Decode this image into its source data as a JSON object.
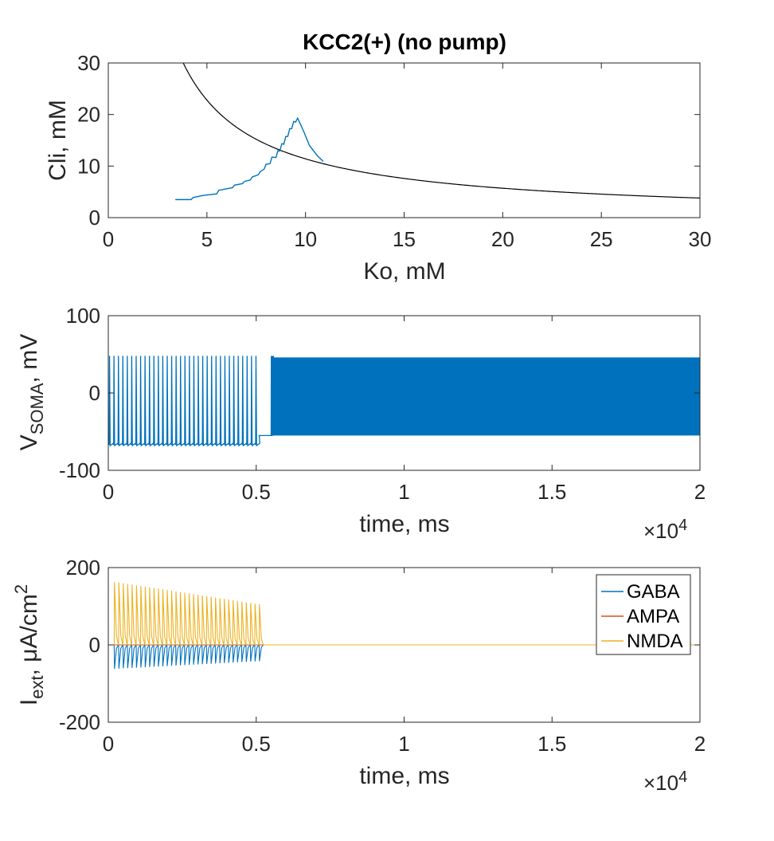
{
  "colors": {
    "gaba": "#0072BD",
    "ampa": "#D95319",
    "nmda": "#EDB120",
    "curve": "#000000",
    "axis": "#262626"
  },
  "chart_data": [
    {
      "type": "line",
      "title": "KCC2(+) (no pump)",
      "xlabel": "Ko, mM",
      "ylabel": "Cli, mM",
      "xlim": [
        0,
        30
      ],
      "ylim": [
        0,
        30
      ],
      "xticks": [
        "0",
        "5",
        "10",
        "15",
        "20",
        "25",
        "30"
      ],
      "yticks": [
        "0",
        "10",
        "20",
        "30"
      ],
      "series": [
        {
          "color": "#000000",
          "formula": "Cli = 114 / Ko",
          "x_range": [
            3.8,
            30
          ]
        },
        {
          "color": "#0072BD",
          "x": [
            3.4,
            4.2,
            4.3,
            4.8,
            5.5,
            5.6,
            6.3,
            6.4,
            6.8,
            6.9,
            7.2,
            7.3,
            7.6,
            7.7,
            7.9,
            8.0,
            8.2,
            8.3,
            8.5,
            8.6,
            8.7,
            8.8,
            8.9,
            9.0,
            9.1,
            9.2,
            9.3,
            9.4,
            9.5,
            9.6,
            9.9,
            10.2,
            10.6,
            10.9
          ],
          "y": [
            3.5,
            3.5,
            3.9,
            4.3,
            4.6,
            5.3,
            5.8,
            6.3,
            6.6,
            7.0,
            7.3,
            7.9,
            8.3,
            8.9,
            9.4,
            10.0,
            10.8,
            11.4,
            12.0,
            12.6,
            13.3,
            14.0,
            14.6,
            15.4,
            16.1,
            16.9,
            17.6,
            18.3,
            18.9,
            19.3,
            16.8,
            14.0,
            12.0,
            10.9
          ]
        }
      ]
    },
    {
      "type": "line",
      "xlabel": "time, ms",
      "ylabel_main": "V",
      "ylabel_sub": "SOMA",
      "ylabel_tail": ", mV",
      "xlim": [
        0,
        20000
      ],
      "ylim": [
        -100,
        100
      ],
      "xticks": [
        "0",
        "0.5",
        "1",
        "1.5",
        "2"
      ],
      "yticks": [
        "-100",
        "0",
        "100"
      ],
      "exponent_base": "×10",
      "exponent_power": "4",
      "series": [
        {
          "color": "#0072BD",
          "segments": [
            {
              "t_start": 0,
              "t_end": 5100,
              "spike_count": 34,
              "peak_mV": 48,
              "trough_mV": -67
            },
            {
              "t_start": 5100,
              "t_end": 5550,
              "plateau_mV": -55
            },
            {
              "t_start": 5500,
              "t_end": 20000,
              "dense_band_top_mV": 46,
              "dense_band_bottom_mV": -55
            }
          ]
        }
      ]
    },
    {
      "type": "line",
      "xlabel": "time, ms",
      "ylabel_main": "I",
      "ylabel_sub": "ext",
      "ylabel_tail": ", μA/cm",
      "ylabel_sup": "2",
      "xlim": [
        0,
        20000
      ],
      "ylim": [
        -200,
        200
      ],
      "xticks": [
        "0",
        "0.5",
        "1",
        "1.5",
        "2"
      ],
      "yticks": [
        "-200",
        "0",
        "200"
      ],
      "exponent_base": "×10",
      "exponent_power": "4",
      "legend_position": "top-right",
      "series": [
        {
          "name": "GABA",
          "color": "#0072BD",
          "pulses": 34,
          "t_start": 200,
          "t_end": 5100,
          "peak_start": -62,
          "peak_end": -42
        },
        {
          "name": "AMPA",
          "color": "#D95319",
          "pulses": 34,
          "t_start": 200,
          "t_end": 5100,
          "peak_start": 0,
          "peak_end": 0
        },
        {
          "name": "NMDA",
          "color": "#EDB120",
          "pulses": 34,
          "t_start": 200,
          "t_end": 5100,
          "peak_start": 163,
          "peak_end": 105
        }
      ]
    }
  ]
}
